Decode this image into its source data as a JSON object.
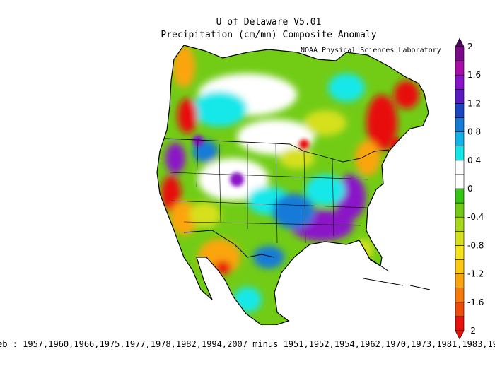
{
  "title": {
    "line1": "U of Delaware V5.01",
    "line2": "Precipitation (cm/mn) Composite Anomaly"
  },
  "credit": "NOAA Physical Sciences Laboratory",
  "footer": "eb : 1957,1960,1966,1975,1977,1978,1982,1994,2007 minus 1951,1952,1954,1962,1970,1973,1981,1983,1993,1",
  "colorbar": {
    "min": -2,
    "max": 2,
    "levels": [
      {
        "value": -2,
        "color": "#e8100a"
      },
      {
        "value": -1.8,
        "color": "#f04a08"
      },
      {
        "value": -1.6,
        "color": "#f77a0a"
      },
      {
        "value": -1.4,
        "color": "#fba50c"
      },
      {
        "value": -1.2,
        "color": "#fcc812"
      },
      {
        "value": -1.0,
        "color": "#f4e21b"
      },
      {
        "value": -0.8,
        "color": "#d6e01a"
      },
      {
        "value": -0.6,
        "color": "#a8d81a"
      },
      {
        "value": -0.4,
        "color": "#72cc16"
      },
      {
        "value": -0.2,
        "color": "#30c612"
      },
      {
        "value": 0,
        "color": "#ffffff"
      },
      {
        "value": 0.2,
        "color": "#ffffff"
      },
      {
        "value": 0.4,
        "color": "#12e8ea"
      },
      {
        "value": 0.6,
        "color": "#10b4e8"
      },
      {
        "value": 0.8,
        "color": "#147ad8"
      },
      {
        "value": 1.0,
        "color": "#1a46c4"
      },
      {
        "value": 1.2,
        "color": "#5a1ac4"
      },
      {
        "value": 1.4,
        "color": "#8a12c8"
      },
      {
        "value": 1.6,
        "color": "#a90ca8"
      },
      {
        "value": 1.8,
        "color": "#7a0a8a"
      },
      {
        "value": 2,
        "color": "#4a0a5a"
      }
    ],
    "tick_labels": [
      "2",
      "1.6",
      "1.2",
      "0.8",
      "0.4",
      "0",
      "-0.4",
      "-0.8",
      "-1.2",
      "-1.6",
      "-2"
    ]
  },
  "map_colors": {
    "land_base": "#72cc16",
    "wet_strong": "#8a12c8",
    "wet_mid": "#147ad8",
    "wet_light": "#12e8ea",
    "neutral": "#ffffff",
    "dry_light": "#d6e01a",
    "dry_mid": "#fba50c",
    "dry_strong": "#e8100a",
    "border": "#000000"
  }
}
